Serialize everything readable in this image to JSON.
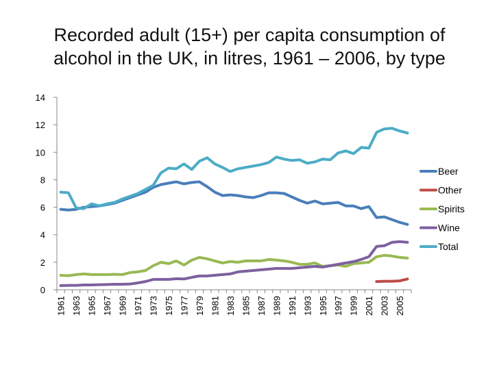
{
  "title_line1": "Recorded adult (15+) per capita consumption of",
  "title_line2": "alcohol in the UK, in litres, 1961 – 2006, by type",
  "chart_data": {
    "type": "line",
    "title": "Recorded adult (15+) per capita consumption of alcohol in the UK, in litres, 1961 – 2006, by type",
    "xlabel": "",
    "ylabel": "",
    "ylim": [
      0,
      14
    ],
    "yticks": [
      0,
      2,
      4,
      6,
      8,
      10,
      12,
      14
    ],
    "x": [
      1961,
      1962,
      1963,
      1964,
      1965,
      1966,
      1967,
      1968,
      1969,
      1970,
      1971,
      1972,
      1973,
      1974,
      1975,
      1976,
      1977,
      1978,
      1979,
      1980,
      1981,
      1982,
      1983,
      1984,
      1985,
      1986,
      1987,
      1988,
      1989,
      1990,
      1991,
      1992,
      1993,
      1994,
      1995,
      1996,
      1997,
      1998,
      1999,
      2000,
      2001,
      2002,
      2003,
      2004,
      2005,
      2006
    ],
    "xtick_labels": [
      "1961",
      "1963",
      "1965",
      "1967",
      "1969",
      "1971",
      "1973",
      "1975",
      "1977",
      "1979",
      "1981",
      "1983",
      "1985",
      "1987",
      "1989",
      "1991",
      "1993",
      "1995",
      "1997",
      "1999",
      "2001",
      "2003",
      "2005"
    ],
    "grid": false,
    "legend_position": "right",
    "series": [
      {
        "name": "Beer",
        "color": "#4a7ebb",
        "values": [
          5.85,
          5.8,
          5.85,
          6.0,
          6.05,
          6.1,
          6.2,
          6.3,
          6.5,
          6.7,
          6.9,
          7.1,
          7.45,
          7.65,
          7.75,
          7.85,
          7.7,
          7.8,
          7.85,
          7.5,
          7.1,
          6.85,
          6.9,
          6.85,
          6.75,
          6.7,
          6.85,
          7.05,
          7.05,
          7.0,
          6.75,
          6.5,
          6.3,
          6.45,
          6.25,
          6.3,
          6.35,
          6.1,
          6.1,
          5.9,
          6.05,
          5.25,
          5.3,
          5.1,
          4.9,
          4.75
        ]
      },
      {
        "name": "Other",
        "color": "#be4b48",
        "values": [
          null,
          null,
          null,
          null,
          null,
          null,
          null,
          null,
          null,
          null,
          null,
          null,
          null,
          null,
          null,
          null,
          null,
          null,
          null,
          null,
          null,
          null,
          null,
          null,
          null,
          null,
          null,
          null,
          null,
          null,
          null,
          null,
          null,
          null,
          null,
          null,
          null,
          null,
          null,
          null,
          null,
          0.6,
          0.62,
          0.62,
          0.65,
          0.78
        ]
      },
      {
        "name": "Spirits",
        "color": "#98b954",
        "values": [
          1.05,
          1.02,
          1.1,
          1.15,
          1.1,
          1.1,
          1.1,
          1.12,
          1.1,
          1.25,
          1.3,
          1.4,
          1.75,
          2.0,
          1.9,
          2.1,
          1.8,
          2.15,
          2.35,
          2.25,
          2.1,
          1.95,
          2.05,
          2.0,
          2.1,
          2.1,
          2.1,
          2.2,
          2.15,
          2.1,
          2.0,
          1.85,
          1.85,
          1.95,
          1.7,
          1.75,
          1.8,
          1.7,
          1.9,
          1.95,
          2.0,
          2.4,
          2.5,
          2.45,
          2.35,
          2.3
        ]
      },
      {
        "name": "Wine",
        "color": "#7d60a0",
        "values": [
          0.3,
          0.32,
          0.32,
          0.35,
          0.35,
          0.37,
          0.38,
          0.4,
          0.4,
          0.42,
          0.5,
          0.6,
          0.75,
          0.75,
          0.75,
          0.8,
          0.78,
          0.9,
          1.0,
          1.0,
          1.05,
          1.1,
          1.15,
          1.3,
          1.35,
          1.4,
          1.45,
          1.5,
          1.55,
          1.55,
          1.55,
          1.6,
          1.65,
          1.7,
          1.65,
          1.75,
          1.85,
          1.95,
          2.05,
          2.2,
          2.4,
          3.15,
          3.2,
          3.45,
          3.5,
          3.45
        ]
      },
      {
        "name": "Total",
        "color": "#4bacc6",
        "values": [
          7.1,
          7.05,
          5.95,
          5.9,
          6.25,
          6.1,
          6.25,
          6.35,
          6.6,
          6.8,
          7.0,
          7.3,
          7.6,
          8.5,
          8.85,
          8.8,
          9.15,
          8.75,
          9.35,
          9.6,
          9.15,
          8.9,
          8.6,
          8.8,
          8.9,
          9.0,
          9.1,
          9.25,
          9.65,
          9.5,
          9.4,
          9.45,
          9.2,
          9.3,
          9.5,
          9.45,
          9.95,
          10.1,
          9.9,
          10.35,
          10.3,
          11.45,
          11.7,
          11.75,
          11.55,
          11.4
        ]
      }
    ]
  }
}
